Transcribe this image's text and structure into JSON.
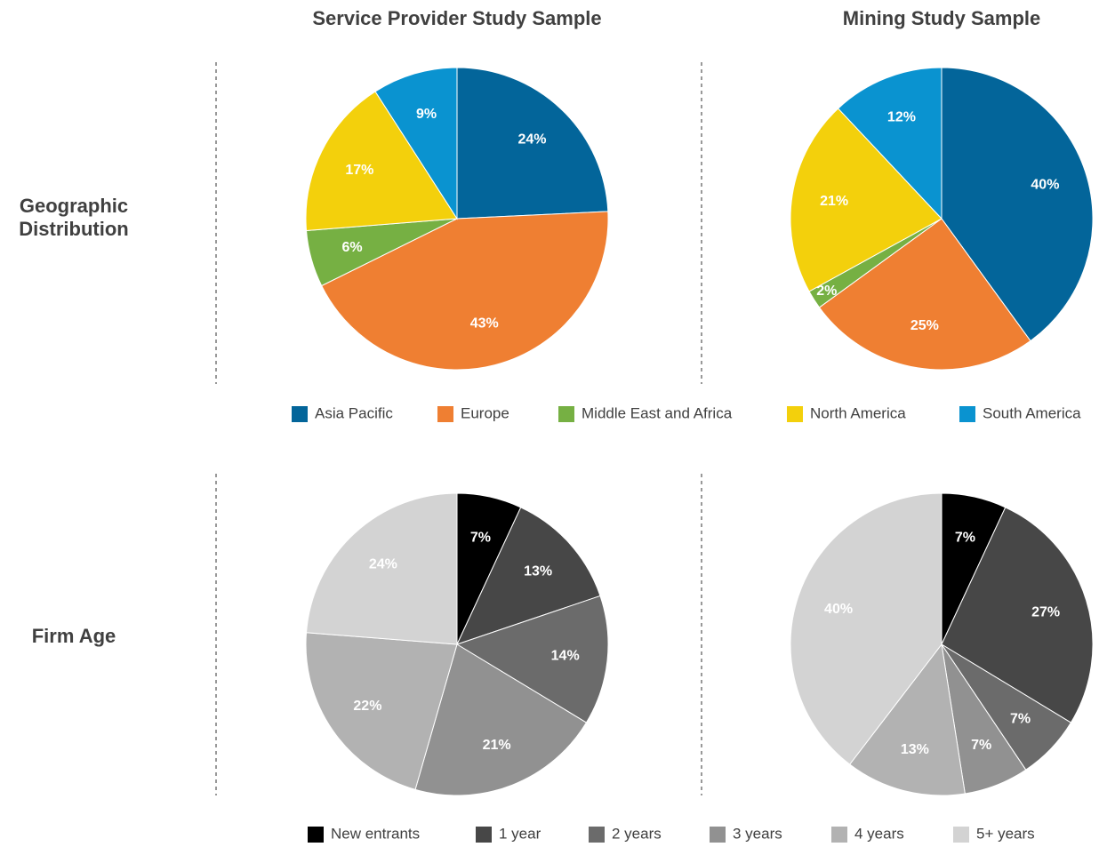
{
  "column_titles": [
    "Service Provider Study Sample",
    "Mining Study Sample"
  ],
  "row_titles": [
    "Geographic Distribution",
    "Firm Age"
  ],
  "chart_data": [
    {
      "type": "pie",
      "categories": [
        "Asia Pacific",
        "Europe",
        "Middle East and Africa",
        "North America",
        "South America"
      ],
      "colors": [
        "#03659a",
        "#ef7f32",
        "#76b043",
        "#f3d00c",
        "#0a93d0"
      ],
      "values": [
        24,
        43,
        6,
        17,
        9
      ],
      "value_labels": [
        "24%",
        "43%",
        "6%",
        "17%",
        "9%"
      ]
    },
    {
      "type": "pie",
      "categories": [
        "Asia Pacific",
        "Europe",
        "Middle East and Africa",
        "North America",
        "South America"
      ],
      "colors": [
        "#03659a",
        "#ef7f32",
        "#76b043",
        "#f3d00c",
        "#0a93d0"
      ],
      "values": [
        40,
        25,
        2,
        21,
        12
      ],
      "value_labels": [
        "40%",
        "25%",
        "2%",
        "21%",
        "12%"
      ]
    },
    {
      "type": "pie",
      "categories": [
        "New entrants",
        "1 year",
        "2 years",
        "3 years",
        "4 years",
        "5+ years"
      ],
      "colors": [
        "#000000",
        "#474747",
        "#6b6b6b",
        "#919191",
        "#b2b2b2",
        "#d3d3d3"
      ],
      "values": [
        7,
        13,
        14,
        21,
        22,
        24
      ],
      "value_labels": [
        "7%",
        "13%",
        "14%",
        "21%",
        "22%",
        "24%"
      ]
    },
    {
      "type": "pie",
      "categories": [
        "New entrants",
        "1 year",
        "2 years",
        "3 years",
        "4 years",
        "5+ years"
      ],
      "colors": [
        "#000000",
        "#474747",
        "#6b6b6b",
        "#919191",
        "#b2b2b2",
        "#d3d3d3"
      ],
      "values": [
        7,
        27,
        7,
        7,
        13,
        40
      ],
      "value_labels": [
        "7%",
        "27%",
        "7%",
        "7%",
        "13%",
        "40%"
      ]
    }
  ]
}
